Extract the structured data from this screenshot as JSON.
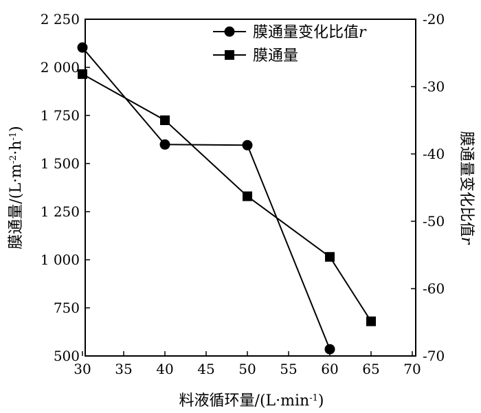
{
  "chart_data": {
    "type": "line",
    "xlabel": "料液循环量/(L·min",
    "xlabel_sup": "-1",
    "xlabel_end": ")",
    "ylabel_left_prefix": "膜通量/(L·m",
    "ylabel_left_sup1": "-2",
    "ylabel_left_mid": "·h",
    "ylabel_left_sup2": "-1",
    "ylabel_left_end": ")",
    "ylabel_right": "膜通量变化比值",
    "ylabel_right_italic": "r",
    "x_ticks": [
      30,
      35,
      40,
      45,
      50,
      55,
      60,
      65,
      70
    ],
    "x_tick_labels": [
      "30",
      "35",
      "40",
      "45",
      "50",
      "55",
      "60",
      "65",
      "70"
    ],
    "xlim": [
      30,
      70
    ],
    "y_left_ticks": [
      500,
      750,
      1000,
      1250,
      1500,
      1750,
      2000,
      2250
    ],
    "y_left_tick_labels": [
      "500",
      "750",
      "1 000",
      "1 250",
      "1 500",
      "1 750",
      "2 000",
      "2 250"
    ],
    "ylim_left": [
      500,
      2250
    ],
    "y_right_ticks": [
      -70,
      -60,
      -50,
      -40,
      -30,
      -20
    ],
    "y_right_tick_labels": [
      "-70",
      "-60",
      "-50",
      "-40",
      "-30",
      "-20"
    ],
    "ylim_right": [
      -70,
      -20
    ],
    "grid": false,
    "legend_position": "top-right",
    "series": [
      {
        "name": "膜通量变化比值",
        "name_italic": "r",
        "axis": "right",
        "marker": "circle",
        "x": [
          30,
          40,
          50,
          60
        ],
        "values": [
          -24.2,
          -38.6,
          -38.7,
          -69.0
        ]
      },
      {
        "name": "膜通量",
        "axis": "left",
        "marker": "square",
        "x": [
          30,
          40,
          50,
          60,
          65
        ],
        "values": [
          1965,
          1725,
          1330,
          1015,
          680
        ]
      }
    ]
  }
}
